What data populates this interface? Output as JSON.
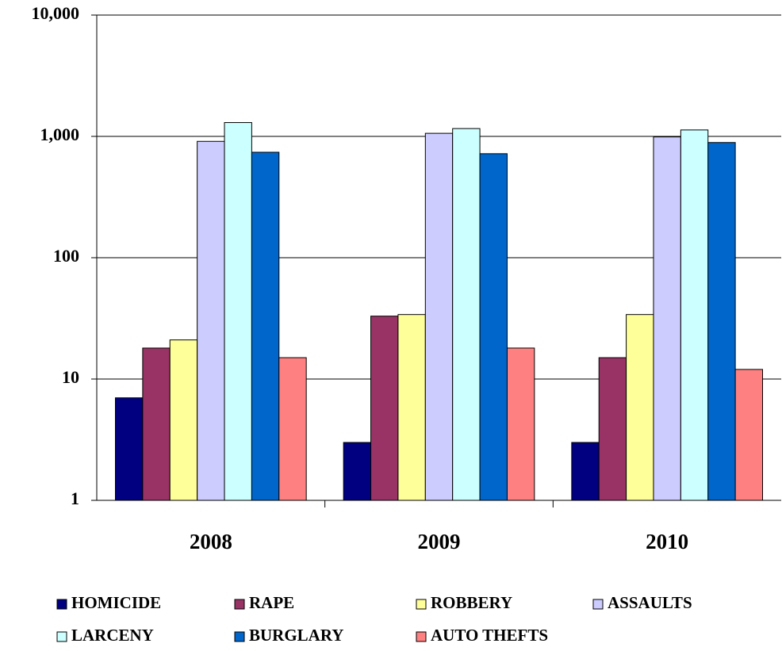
{
  "chart_data": {
    "type": "bar",
    "log": true,
    "grid": true,
    "categories": [
      "2008",
      "2009",
      "2010"
    ],
    "series": [
      {
        "name": "HOMICIDE",
        "color": "#000080",
        "values": [
          7,
          3,
          3
        ]
      },
      {
        "name": "RAPE",
        "color": "#993366",
        "values": [
          18,
          33,
          15
        ]
      },
      {
        "name": "ROBBERY",
        "color": "#ffff99",
        "values": [
          21,
          34,
          34
        ]
      },
      {
        "name": "ASSAULTS",
        "color": "#ccccff",
        "values": [
          910,
          1060,
          990
        ]
      },
      {
        "name": "LARCENY",
        "color": "#ccffff",
        "values": [
          1300,
          1160,
          1130
        ]
      },
      {
        "name": "BURGLARY",
        "color": "#0066cc",
        "values": [
          740,
          720,
          890
        ]
      },
      {
        "name": "AUTO THEFTS",
        "color": "#ff8080",
        "values": [
          15,
          18,
          12
        ]
      }
    ],
    "ylim": [
      1,
      10000
    ],
    "yticks": [
      1,
      10,
      100,
      {
        "value": 1000,
        "label": "1,000"
      },
      {
        "value": 10000,
        "label": "10,000"
      }
    ]
  }
}
